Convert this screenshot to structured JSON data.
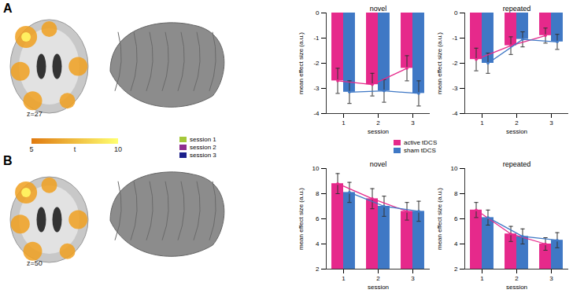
{
  "chart_data": [
    {
      "type": "bar",
      "title": "novel",
      "xlabel": "session",
      "ylabel": "mean effect size (a.u.)",
      "categories": [
        "1",
        "2",
        "3"
      ],
      "ylim": [
        -4,
        0
      ],
      "yticks": [
        -4,
        -3,
        -2,
        -1,
        0
      ],
      "series": [
        {
          "name": "active tDCS",
          "color": "#e6298b",
          "values": [
            -2.7,
            -2.85,
            -2.2
          ],
          "errors": [
            0.5,
            0.45,
            0.5
          ]
        },
        {
          "name": "sham tDCS",
          "color": "#3f78c5",
          "values": [
            -3.15,
            -3.1,
            -3.2
          ],
          "errors": [
            0.45,
            0.45,
            0.5
          ]
        }
      ]
    },
    {
      "type": "bar",
      "title": "repeated",
      "xlabel": "session",
      "ylabel": "mean effect size (a.u.)",
      "categories": [
        "1",
        "2",
        "3"
      ],
      "ylim": [
        -4,
        0
      ],
      "yticks": [
        -4,
        -3,
        -2,
        -1,
        0
      ],
      "series": [
        {
          "name": "active tDCS",
          "color": "#e6298b",
          "values": [
            -1.85,
            -1.3,
            -0.9
          ],
          "errors": [
            0.45,
            0.35,
            0.3
          ]
        },
        {
          "name": "sham tDCS",
          "color": "#3f78c5",
          "values": [
            -2.0,
            -1.05,
            -1.15
          ],
          "errors": [
            0.4,
            0.3,
            0.3
          ]
        }
      ]
    },
    {
      "type": "bar",
      "title": "novel",
      "xlabel": "session",
      "ylabel": "mean effect size (a.u.)",
      "categories": [
        "1",
        "2",
        "3"
      ],
      "ylim": [
        2,
        10
      ],
      "yticks": [
        2,
        4,
        6,
        8,
        10
      ],
      "series": [
        {
          "name": "active tDCS",
          "color": "#e6298b",
          "values": [
            8.8,
            7.6,
            6.6
          ],
          "errors": [
            0.8,
            0.8,
            0.7
          ]
        },
        {
          "name": "sham tDCS",
          "color": "#3f78c5",
          "values": [
            8.1,
            7.0,
            6.6
          ],
          "errors": [
            0.8,
            0.8,
            0.8
          ]
        }
      ]
    },
    {
      "type": "bar",
      "title": "repeated",
      "xlabel": "session",
      "ylabel": "mean effect size (a.u.)",
      "categories": [
        "1",
        "2",
        "3"
      ],
      "ylim": [
        2,
        10
      ],
      "yticks": [
        2,
        4,
        6,
        8,
        10
      ],
      "series": [
        {
          "name": "active tDCS",
          "color": "#e6298b",
          "values": [
            6.7,
            4.8,
            4.0
          ],
          "errors": [
            0.6,
            0.6,
            0.5
          ]
        },
        {
          "name": "sham tDCS",
          "color": "#3f78c5",
          "values": [
            6.1,
            4.6,
            4.3
          ],
          "errors": [
            0.6,
            0.6,
            0.6
          ]
        }
      ]
    }
  ],
  "figure": {
    "panel_labels": [
      "A",
      "B"
    ],
    "slice_labels": [
      "z=27",
      "z=50"
    ],
    "colorbar": {
      "label": "t",
      "range": [
        5,
        10
      ],
      "ticks": [
        5,
        10
      ],
      "colors": [
        "#e07a10",
        "#ffff70"
      ]
    },
    "session_legend": [
      {
        "name": "session 1",
        "color": "#a5c83a"
      },
      {
        "name": "session 2",
        "color": "#8e2d8e"
      },
      {
        "name": "session 3",
        "color": "#1b1f8a"
      }
    ]
  }
}
